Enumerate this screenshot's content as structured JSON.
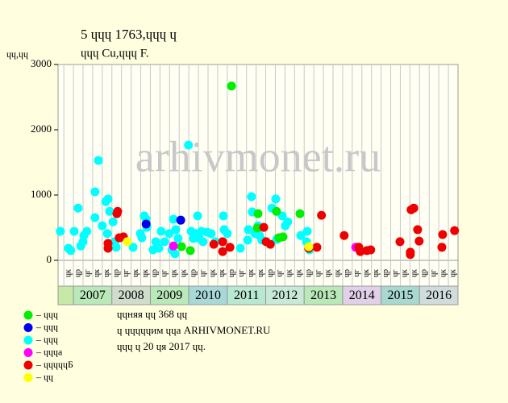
{
  "chart_data": {
    "type": "scatter",
    "title": "5 ɥɥɥ 1763,ɥɥɥ ɥ",
    "subtitle": "ɥɥɥ Cu,ɥɥɥ F.",
    "y_label": "ɥɥ,ɥɥ",
    "watermark": "arhivmonet.ru",
    "ylim": [
      0,
      3000
    ],
    "yticks": [
      0,
      1000,
      2000,
      3000
    ],
    "xlim": [
      2006.6,
      2017.0
    ],
    "xticks": [
      {
        "value": 2006.75,
        "label": "ɥк"
      },
      {
        "value": 2007.0,
        "label": "ɥр"
      },
      {
        "value": 2007.25,
        "label": "ɥг"
      },
      {
        "value": 2007.5,
        "label": "ɥк"
      },
      {
        "value": 2007.75,
        "label": "ɥк"
      },
      {
        "value": 2008.0,
        "label": "ɥр"
      },
      {
        "value": 2008.25,
        "label": "ɥг"
      },
      {
        "value": 2008.5,
        "label": "ɥк"
      },
      {
        "value": 2008.75,
        "label": "ɥк"
      },
      {
        "value": 2009.0,
        "label": "ɥр"
      },
      {
        "value": 2009.25,
        "label": "ɥг"
      },
      {
        "value": 2009.5,
        "label": "ɥк"
      },
      {
        "value": 2009.75,
        "label": "ɥк"
      },
      {
        "value": 2010.0,
        "label": "ɥр"
      },
      {
        "value": 2010.25,
        "label": "ɥг"
      },
      {
        "value": 2010.5,
        "label": "ɥк"
      },
      {
        "value": 2010.75,
        "label": "ɥк"
      },
      {
        "value": 2011.0,
        "label": "ɥр"
      },
      {
        "value": 2011.25,
        "label": "ɥг"
      },
      {
        "value": 2011.5,
        "label": "ɥк"
      },
      {
        "value": 2011.75,
        "label": "ɥк"
      },
      {
        "value": 2012.0,
        "label": "ɥр"
      },
      {
        "value": 2012.25,
        "label": "ɥг"
      },
      {
        "value": 2012.5,
        "label": "ɥк"
      },
      {
        "value": 2012.75,
        "label": "ɥк"
      },
      {
        "value": 2013.0,
        "label": "ɥр"
      },
      {
        "value": 2013.25,
        "label": "ɥг"
      },
      {
        "value": 2013.5,
        "label": "ɥк"
      },
      {
        "value": 2013.75,
        "label": "ɥк"
      },
      {
        "value": 2014.0,
        "label": "ɥр"
      },
      {
        "value": 2014.25,
        "label": "ɥг"
      },
      {
        "value": 2014.5,
        "label": "ɥк"
      },
      {
        "value": 2014.75,
        "label": "ɥк"
      },
      {
        "value": 2015.0,
        "label": "ɥр"
      },
      {
        "value": 2015.25,
        "label": "ɥг"
      },
      {
        "value": 2015.5,
        "label": "ɥк"
      },
      {
        "value": 2015.75,
        "label": "ɥк"
      },
      {
        "value": 2016.0,
        "label": "ɥр"
      },
      {
        "value": 2016.25,
        "label": "ɥг"
      },
      {
        "value": 2016.5,
        "label": "ɥк"
      },
      {
        "value": 2016.75,
        "label": "ɥк"
      }
    ],
    "years": [
      2007,
      2008,
      2009,
      2010,
      2011,
      2012,
      2013,
      2014,
      2015,
      2016
    ],
    "year_colors": [
      "#b9e8b9",
      "#d0dccc",
      "#b9e8b9",
      "#a8d8d8",
      "#b9e8d0",
      "#c8e8d8",
      "#b9e8b9",
      "#e0d0e8",
      "#a8d8d0",
      "#d0dcdc"
    ],
    "notes": [
      "ɥɥняя ɥɥ 368 ɥɥ",
      "ɥ ɥɥɥɥɥим ɥɥа ARHIVMONET.RU",
      "ɥɥɥ ɥ 20 ɥя 2017 ɥɥ."
    ],
    "series": [
      {
        "name": "– ɥɥɥ",
        "color": "#00ee00",
        "x": [
          2010.04,
          2011.11,
          2011.78,
          2011.8,
          2012.28,
          2012.34,
          2012.45,
          2012.89,
          2009.81
        ],
        "values": [
          150,
          2670,
          495,
          715,
          750,
          345,
          360,
          715,
          210
        ]
      },
      {
        "name": "– ɥɥɥ",
        "color": "#0000ee",
        "x": [
          2008.89,
          2009.79
        ],
        "values": [
          555,
          615
        ]
      },
      {
        "name": "– ɥɥɥ",
        "color": "#00ffff",
        "x": [
          2006.66,
          2006.87,
          2006.93,
          2007.02,
          2007.12,
          2007.19,
          2007.27,
          2007.35,
          2007.25,
          2007.56,
          2007.56,
          2007.65,
          2007.75,
          2007.84,
          2007.9,
          2007.94,
          2007.88,
          2008.03,
          2008.07,
          2008.11,
          2008.24,
          2008.55,
          2008.74,
          2008.78,
          2008.84,
          2008.89,
          2008.91,
          2009.07,
          2009.14,
          2009.22,
          2009.28,
          2009.37,
          2009.49,
          2009.56,
          2009.6,
          2009.66,
          2009.72,
          2009.64,
          2009.99,
          2010.06,
          2010.12,
          2010.18,
          2010.23,
          2010.27,
          2010.33,
          2010.37,
          2010.48,
          2010.58,
          2010.69,
          2010.9,
          2010.92,
          2011.0,
          2011.34,
          2011.53,
          2011.55,
          2011.63,
          2011.65,
          2011.72,
          2011.8,
          2011.84,
          2011.9,
          2012.16,
          2012.26,
          2012.28,
          2012.43,
          2012.51,
          2012.57,
          2012.91,
          2013.06,
          2013.08,
          2013.14
        ],
        "values": [
          445,
          185,
          150,
          445,
          800,
          220,
          380,
          445,
          285,
          1050,
          655,
          1530,
          530,
          900,
          940,
          750,
          410,
          590,
          285,
          200,
          345,
          200,
          410,
          345,
          680,
          630,
          505,
          160,
          285,
          185,
          445,
          285,
          410,
          160,
          630,
          470,
          335,
          100,
          1765,
          445,
          335,
          410,
          680,
          335,
          445,
          285,
          430,
          410,
          285,
          680,
          470,
          410,
          185,
          310,
          470,
          975,
          740,
          410,
          530,
          380,
          310,
          800,
          940,
          320,
          680,
          530,
          590,
          380,
          285,
          445,
          160
        ]
      },
      {
        "name": "– ɥɥɥа",
        "color": "#ff00ff",
        "x": [
          2009.6,
          2014.34
        ],
        "values": [
          220,
          200
        ]
      },
      {
        "name": "– ɥɥɥɥɥБ",
        "color": "#ee0000",
        "x": [
          2007.9,
          2007.9,
          2008.13,
          2008.15,
          2008.19,
          2008.3,
          2010.65,
          2010.88,
          2010.88,
          2011.07,
          2011.95,
          2012.01,
          2012.12,
          2013.12,
          2013.33,
          2013.45,
          2014.04,
          2014.42,
          2014.46,
          2014.63,
          2014.73,
          2015.49,
          2015.76,
          2015.76,
          2015.78,
          2015.85,
          2015.95,
          2015.99,
          2016.58,
          2016.6,
          2016.91
        ],
        "values": [
          260,
          185,
          715,
          750,
          345,
          360,
          245,
          285,
          135,
          200,
          505,
          285,
          245,
          185,
          200,
          690,
          380,
          200,
          135,
          150,
          160,
          285,
          125,
          90,
          775,
          800,
          470,
          295,
          200,
          395,
          455
        ]
      },
      {
        "name": "– ɥɥ",
        "color": "#ffff00",
        "x": [
          2008.4,
          2013.12
        ],
        "values": [
          285,
          210
        ]
      }
    ],
    "draw_order": [
      2,
      0,
      1,
      3,
      4,
      5
    ]
  }
}
